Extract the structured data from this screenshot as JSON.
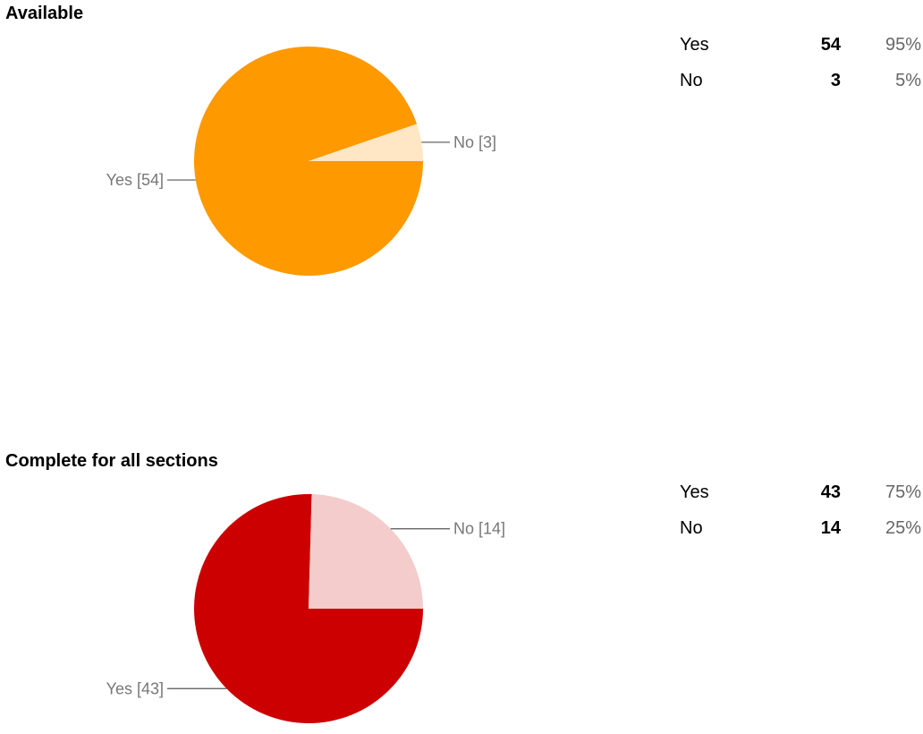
{
  "chart_data": [
    {
      "type": "pie",
      "title": "Available",
      "categories": [
        "Yes",
        "No"
      ],
      "values": [
        54,
        3
      ],
      "slice_labels": [
        "Yes [54]",
        "No [3]"
      ],
      "percentages": [
        "95%",
        "5%"
      ],
      "colors": [
        "#ff9900",
        "#ffe6c4"
      ]
    },
    {
      "type": "pie",
      "title": "Complete for all sections",
      "categories": [
        "Yes",
        "No"
      ],
      "values": [
        43,
        14
      ],
      "slice_labels": [
        "Yes [43]",
        "No [14]"
      ],
      "percentages": [
        "75%",
        "25%"
      ],
      "colors": [
        "#cc0000",
        "#f4cccc"
      ]
    }
  ]
}
